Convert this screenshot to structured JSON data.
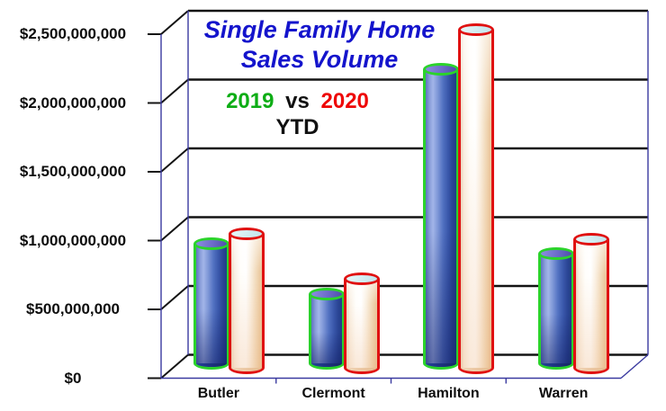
{
  "title": {
    "line1": "Single Family Home",
    "line2": "Sales Volume",
    "color": "#1414CC"
  },
  "legend": {
    "series1_label": "2019",
    "separator": "vs",
    "series2_label": "2020",
    "period_label": "YTD",
    "series1_color": "#0DAD15",
    "series2_color": "#EE0505",
    "text_color": "#111111"
  },
  "chart_data": {
    "type": "bar",
    "style": "3d-cylinder",
    "title": "Single Family Home Sales Volume",
    "subtitle": "2019 vs 2020 YTD",
    "categories": [
      "Butler",
      "Clermont",
      "Hamilton",
      "Warren"
    ],
    "series": [
      {
        "name": "2019",
        "outline_color": "#2BD32B",
        "body_fill": "blue-gradient",
        "values_usd": [
          870000000,
          505000000,
          2135000000,
          800000000
        ]
      },
      {
        "name": "2020",
        "outline_color": "#E01111",
        "body_fill": "cream-gradient",
        "values_usd": [
          975000000,
          650000000,
          2455000000,
          935000000
        ]
      }
    ],
    "y_axis": {
      "min": 0,
      "max": 2500000000,
      "tick_values": [
        0,
        500000000,
        1000000000,
        1500000000,
        2000000000,
        2500000000
      ],
      "tick_labels": [
        "$0",
        "$500,000,000",
        "$1,000,000,000",
        "$1,500,000,000",
        "$2,000,000,000",
        "$2,500,000,000"
      ]
    },
    "grid": true,
    "legend_position": "top-left-inside"
  },
  "colors": {
    "background": "#FFFFFF",
    "axis_line": "#3A3AA0",
    "gridline": "#141414",
    "tick_text": "#0D0D0D"
  }
}
